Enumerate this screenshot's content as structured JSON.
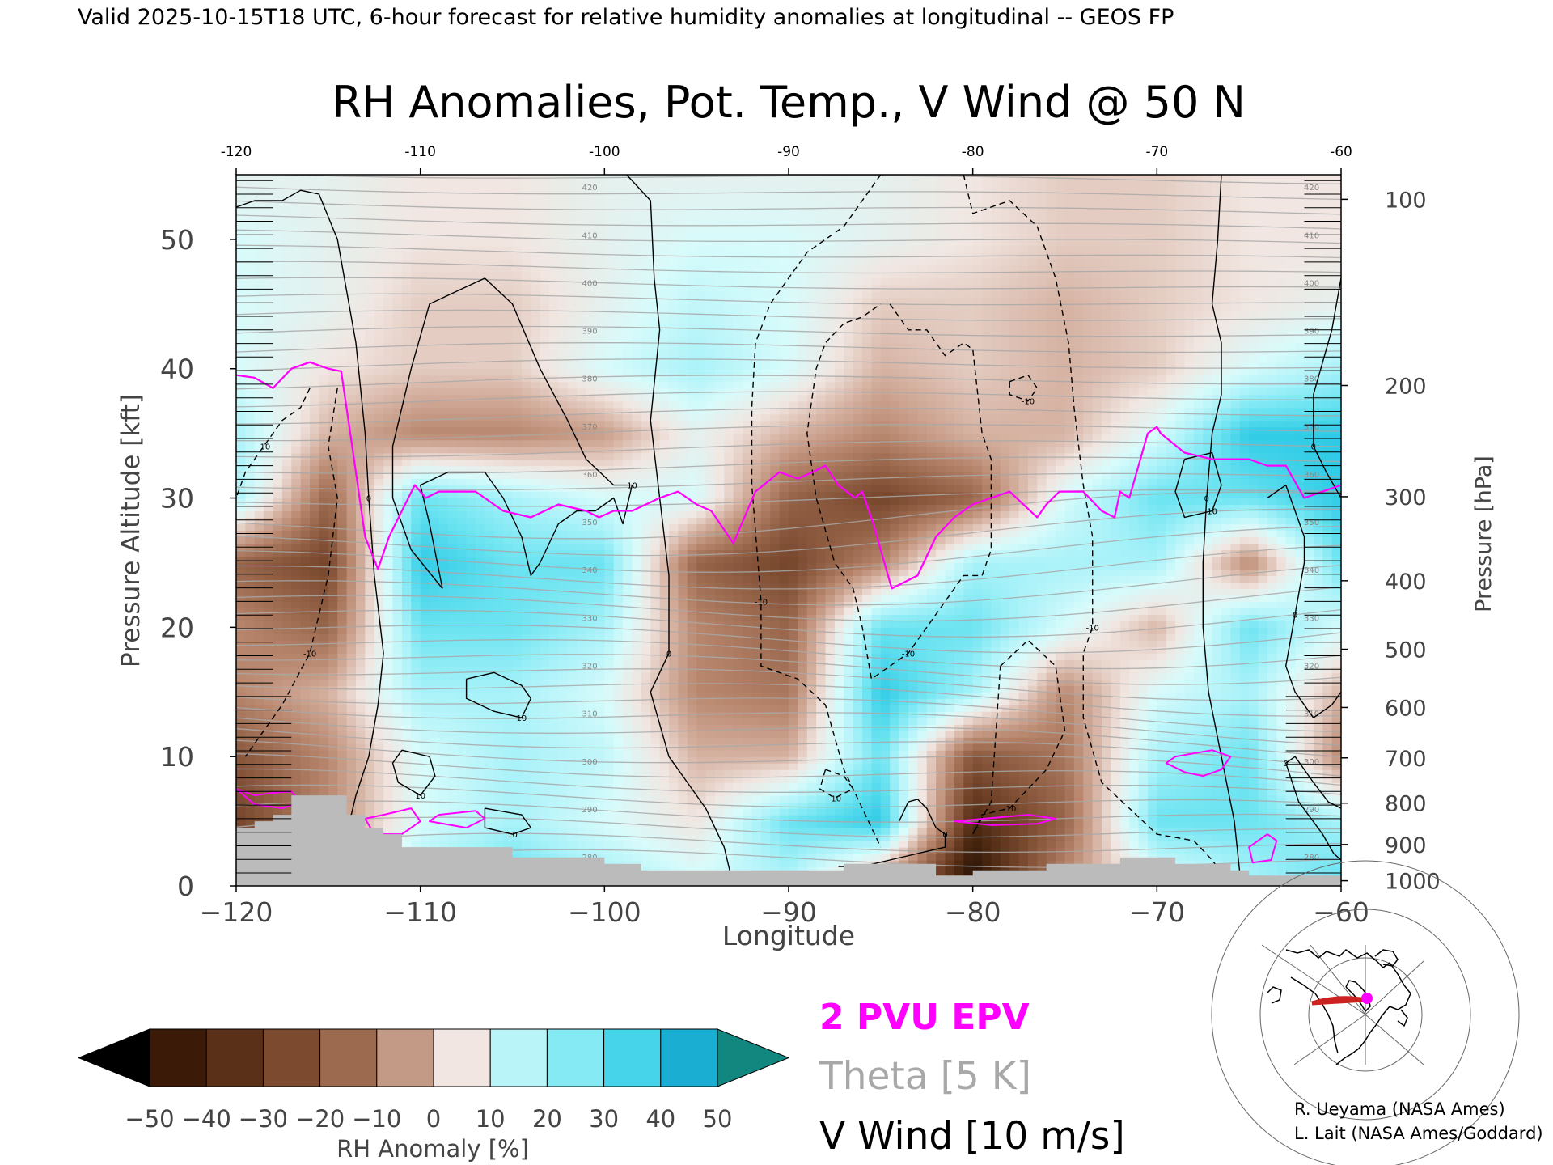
{
  "header": {
    "valid_line": "Valid 2025-10-15T18 UTC, 6-hour forecast for relative humidity anomalies at longitudinal -- GEOS FP"
  },
  "chart_data": {
    "type": "heatmap",
    "title": "RH Anomalies, Pot. Temp., V Wind @ 50 N",
    "xlabel": "Longitude",
    "ylabel_left": "Pressure Altitude [kft]",
    "ylabel_right": "Pressure [hPa]",
    "xlim": [
      -120,
      -60
    ],
    "ylim": [
      0,
      55
    ],
    "x_ticks": [
      -120,
      -110,
      -100,
      -90,
      -80,
      -70,
      -60
    ],
    "x_tick_labels_bottom": [
      "−120",
      "−110",
      "−100",
      "−90",
      "−80",
      "−70",
      "−60"
    ],
    "x_tick_labels_top": [
      "-120",
      "-110",
      "-100",
      "-90",
      "-80",
      "-70",
      "-60"
    ],
    "y_ticks": [
      0,
      10,
      20,
      30,
      40,
      50
    ],
    "y_tick_labels": [
      "0",
      "10",
      "20",
      "30",
      "40",
      "50"
    ],
    "pressure_levels": [
      {
        "hpa": 100,
        "kft": 53.1,
        "label": "100"
      },
      {
        "hpa": 200,
        "kft": 38.7,
        "label": "200"
      },
      {
        "hpa": 300,
        "kft": 30.1,
        "label": "300"
      },
      {
        "hpa": 400,
        "kft": 23.6,
        "label": "400"
      },
      {
        "hpa": 500,
        "kft": 18.3,
        "label": "500"
      },
      {
        "hpa": 600,
        "kft": 13.8,
        "label": "600"
      },
      {
        "hpa": 700,
        "kft": 9.9,
        "label": "700"
      },
      {
        "hpa": 800,
        "kft": 6.4,
        "label": "800"
      },
      {
        "hpa": 900,
        "kft": 3.2,
        "label": "900"
      },
      {
        "hpa": 1000,
        "kft": 0.4,
        "label": "1000"
      }
    ],
    "colorbar": {
      "label": "RH Anomaly [%]",
      "ticks": [
        "−50",
        "−40",
        "−30",
        "−20",
        "−10",
        "0",
        "10",
        "20",
        "30",
        "40",
        "50"
      ],
      "colors": [
        "#2a1206",
        "#4e2a12",
        "#74442a",
        "#966449",
        "#b8876e",
        "#d6b2a2",
        "#f1e6e1",
        "#d8fbfb",
        "#a9f2f9",
        "#6be3f1",
        "#2fcbe6",
        "#0f9ec4",
        "#147f86"
      ],
      "under_color": "#000000",
      "over_color": "#128780"
    },
    "rh_anomaly_samples": {
      "x": [
        -120,
        -115,
        -110,
        -105,
        -100,
        -95,
        -90,
        -85,
        -80,
        -75,
        -70,
        -65,
        -60
      ],
      "y": [
        1,
        5,
        10,
        15,
        20,
        25,
        30,
        35,
        40,
        45,
        50,
        55
      ],
      "values": [
        [
          -30,
          -10,
          20,
          30,
          20,
          10,
          20,
          -10,
          -60,
          -20,
          10,
          20,
          30
        ],
        [
          -40,
          -20,
          10,
          20,
          10,
          0,
          30,
          40,
          -50,
          -30,
          30,
          30,
          20
        ],
        [
          -35,
          -20,
          10,
          20,
          15,
          -10,
          -10,
          30,
          -35,
          -25,
          20,
          30,
          -20
        ],
        [
          -20,
          -10,
          20,
          20,
          10,
          -20,
          -25,
          40,
          20,
          -20,
          10,
          20,
          -10
        ],
        [
          -20,
          -30,
          30,
          30,
          20,
          -20,
          -30,
          30,
          30,
          10,
          -10,
          30,
          10
        ],
        [
          -30,
          -40,
          40,
          30,
          30,
          -30,
          -40,
          -20,
          20,
          20,
          20,
          -20,
          30
        ],
        [
          20,
          -30,
          30,
          20,
          10,
          10,
          -30,
          -40,
          -30,
          10,
          30,
          30,
          40
        ],
        [
          20,
          -10,
          -20,
          -20,
          -15,
          5,
          -10,
          -20,
          -10,
          -10,
          10,
          40,
          40
        ],
        [
          10,
          0,
          -5,
          -5,
          10,
          20,
          10,
          -10,
          -5,
          -10,
          -5,
          10,
          20
        ],
        [
          10,
          5,
          -5,
          -5,
          5,
          15,
          10,
          -5,
          -5,
          -10,
          -5,
          0,
          5
        ],
        [
          10,
          5,
          0,
          0,
          5,
          10,
          10,
          5,
          0,
          -5,
          -5,
          0,
          0
        ],
        [
          5,
          5,
          0,
          0,
          5,
          5,
          5,
          5,
          0,
          -5,
          -5,
          0,
          0
        ]
      ]
    },
    "epv_2pvu_line": {
      "x": [
        -120,
        -119,
        -118,
        -117,
        -116,
        -115,
        -114.3,
        -113.7,
        -113,
        -112.3,
        -111.7,
        -111,
        -110.3,
        -109.7,
        -109,
        -107,
        -105.5,
        -104,
        -102.5,
        -101,
        -100.3,
        -99.5,
        -98.5,
        -97,
        -96,
        -95,
        -94.2,
        -93,
        -91.8,
        -90.5,
        -89.5,
        -88.7,
        -88,
        -87.3,
        -86.4,
        -86,
        -85.4,
        -84.4,
        -83,
        -82,
        -81,
        -80,
        -79,
        -78,
        -76.5,
        -76,
        -75.3,
        -74,
        -73,
        -72.3,
        -72,
        -71.5,
        -70.5,
        -70,
        -69.8,
        -68.5,
        -67,
        -65,
        -64,
        -63,
        -62,
        -61,
        -60
      ],
      "y": [
        39.5,
        39.3,
        38.5,
        40,
        40.5,
        40,
        39.8,
        34,
        27,
        24.5,
        27,
        29,
        31,
        30,
        30.5,
        30.5,
        29,
        28.5,
        29.5,
        29,
        28.5,
        29,
        29,
        30,
        30.5,
        29.5,
        29,
        26.5,
        30.5,
        32,
        31.5,
        32,
        32.5,
        31,
        30,
        30.5,
        28,
        23,
        24,
        27,
        28.5,
        29.5,
        30,
        30.5,
        28.5,
        29.5,
        30.5,
        30.5,
        29,
        28.5,
        30.5,
        30,
        35,
        35.5,
        35,
        33.5,
        33,
        33,
        32.5,
        32.5,
        30,
        30.5,
        31
      ]
    },
    "epv_2pvu_blobs": [
      {
        "x": [
          -120,
          -119,
          -118,
          -117,
          -116.5,
          -117.5,
          -119,
          -120
        ],
        "y": [
          7.5,
          7,
          7.2,
          7.3,
          6.5,
          6,
          6.3,
          7.5
        ]
      },
      {
        "x": [
          -112,
          -113,
          -112.5,
          -111,
          -110,
          -110.5,
          -112
        ],
        "y": [
          5.5,
          5.2,
          4,
          4,
          5,
          6,
          5.5
        ]
      },
      {
        "x": [
          -109,
          -107,
          -106.5,
          -107.5,
          -109.5,
          -109
        ],
        "y": [
          5.5,
          5.8,
          5.2,
          4.5,
          5,
          5.5
        ]
      },
      {
        "x": [
          -81,
          -77,
          -75.5,
          -76.5,
          -79,
          -81
        ],
        "y": [
          5,
          5.5,
          5.2,
          4.8,
          4.7,
          5
        ]
      },
      {
        "x": [
          -69,
          -67,
          -66,
          -66.5,
          -67.5,
          -68.5,
          -69.5,
          -69
        ],
        "y": [
          10,
          10.5,
          10,
          9,
          8.5,
          8.8,
          9.5,
          10
        ]
      },
      {
        "x": [
          -64,
          -63.5,
          -63.8,
          -64.8,
          -65,
          -64
        ],
        "y": [
          4,
          3.5,
          2,
          1.8,
          3,
          4
        ]
      }
    ],
    "v_wind_contours": [
      {
        "label": "0",
        "style": "solid",
        "x": [
          -120,
          -119,
          -117.5,
          -116.5,
          -115.5,
          -114.5,
          -113.5,
          -113,
          -112.8,
          -112.5,
          -112,
          -112.3,
          -112.8,
          -113.5,
          -114,
          -115
        ],
        "y": [
          52.5,
          53,
          53,
          53.8,
          53.5,
          50,
          42,
          35,
          30,
          24,
          18,
          14,
          10,
          7,
          4,
          0
        ]
      },
      {
        "label": "0",
        "style": "solid",
        "x": [
          -98.8,
          -97.5,
          -97.3,
          -97,
          -97.5,
          -97,
          -96.5,
          -96.5,
          -97.5,
          -96.5,
          -95.5,
          -94.5,
          -93.5,
          -93
        ],
        "y": [
          55,
          53,
          47,
          43,
          36,
          30,
          24,
          18,
          15,
          10,
          8,
          6,
          3,
          0
        ]
      },
      {
        "label": "0",
        "style": "solid",
        "x": [
          -66.5,
          -66.7,
          -67,
          -66.5,
          -66.5,
          -67,
          -67.3,
          -67.5,
          -67.5,
          -67.2,
          -66.5,
          -65.8,
          -65.5
        ],
        "y": [
          55,
          50,
          45,
          42,
          38,
          35,
          30,
          25,
          20,
          15,
          10,
          5,
          1
        ]
      },
      {
        "label": "0",
        "style": "solid",
        "x": [
          -64,
          -63,
          -62.5,
          -62,
          -62,
          -62.5,
          -63,
          -62.5,
          -61.5,
          -60.5,
          -60
        ],
        "y": [
          30,
          31,
          29,
          27,
          25,
          21,
          17,
          15,
          13,
          14,
          15
        ]
      },
      {
        "label": "0",
        "style": "solid",
        "x": [
          -60,
          -60.5,
          -61.5,
          -61.5,
          -60.8,
          -60
        ],
        "y": [
          47,
          43,
          38,
          34,
          32,
          30
        ]
      },
      {
        "label": "0",
        "style": "solid",
        "x": [
          -84,
          -83.5,
          -83,
          -82.5,
          -82,
          -81.5,
          -81.5,
          -83,
          -84.5,
          -86,
          -87.3
        ],
        "y": [
          5,
          6.5,
          6.7,
          6,
          4.5,
          4,
          3,
          2.5,
          2,
          1.5,
          1.5
        ]
      },
      {
        "label": "0",
        "style": "solid",
        "x": [
          -60,
          -60.7,
          -61.5,
          -62.5,
          -63,
          -62.3,
          -61,
          -60.4,
          -60
        ],
        "y": [
          6,
          6.5,
          8,
          10,
          9.5,
          6.5,
          4,
          2.5,
          2
        ]
      },
      {
        "label": "10",
        "style": "solid",
        "x": [
          -108.8,
          -109.5,
          -110,
          -108.5,
          -106.5,
          -105.5,
          -104.5,
          -104,
          -103.5,
          -102.5,
          -101.5,
          -100.5,
          -99.5,
          -99,
          -98.5,
          -99.5,
          -101,
          -102,
          -103.5,
          -105,
          -106.5,
          -108,
          -109.5,
          -110.5,
          -111.5,
          -111.5,
          -110.5,
          -108.8
        ],
        "y": [
          23,
          28,
          31,
          32,
          32,
          30,
          27,
          24,
          25,
          28,
          29,
          29,
          30,
          28,
          31,
          31,
          33,
          36,
          40,
          45,
          47,
          46,
          45,
          40,
          34,
          30,
          26,
          23
        ]
      },
      {
        "label": "10",
        "style": "solid",
        "x": [
          -107.5,
          -106,
          -104.5,
          -104,
          -104.5,
          -106,
          -107.5,
          -107.5
        ],
        "y": [
          16,
          16.5,
          15.5,
          14.5,
          13,
          13.5,
          14.5,
          16
        ]
      },
      {
        "label": "10",
        "style": "solid",
        "x": [
          -111,
          -109.5,
          -109.2,
          -110,
          -111.2,
          -111.5,
          -111
        ],
        "y": [
          10.5,
          10,
          8.5,
          7,
          8,
          9.5,
          10.5
        ]
      },
      {
        "label": "10",
        "style": "solid",
        "x": [
          -106.5,
          -104.5,
          -104,
          -105,
          -106.5,
          -106.5
        ],
        "y": [
          6,
          5.5,
          4.5,
          4,
          4.5,
          6
        ]
      },
      {
        "label": "10",
        "style": "solid",
        "x": [
          -68.5,
          -67,
          -66.5,
          -67,
          -68.5,
          -69,
          -68.5
        ],
        "y": [
          33,
          33.5,
          31,
          29,
          28.5,
          30.5,
          33
        ]
      },
      {
        "label": "-10",
        "style": "dashed",
        "x": [
          -116,
          -116.5,
          -117.5,
          -118.5,
          -119.5,
          -120
        ],
        "y": [
          38.5,
          37,
          36,
          34,
          32,
          30
        ]
      },
      {
        "label": "-10",
        "style": "dashed",
        "x": [
          -114.5,
          -115,
          -114.5,
          -115,
          -116,
          -117.5,
          -118.5,
          -119.5
        ],
        "y": [
          38.5,
          34,
          30,
          24,
          18,
          14,
          12,
          10
        ]
      },
      {
        "label": "-10",
        "style": "dashed",
        "x": [
          -85,
          -87,
          -89,
          -91,
          -91.8,
          -92,
          -92,
          -91.5,
          -91.5,
          -89.5,
          -88,
          -87,
          -86,
          -85
        ],
        "y": [
          55,
          51,
          49,
          45,
          42,
          37,
          31,
          22,
          17,
          16,
          14,
          9,
          6,
          3
        ]
      },
      {
        "label": "-10",
        "style": "dashed",
        "x": [
          -80.5,
          -80,
          -78,
          -76.5,
          -75.5,
          -74.8,
          -74.5,
          -74,
          -73.5,
          -73.5,
          -73.5,
          -74,
          -74,
          -73,
          -70,
          -68,
          -67,
          -66.5,
          -65,
          -64.5
        ],
        "y": [
          55,
          52,
          53,
          51,
          47,
          42,
          37,
          31,
          27,
          24,
          20,
          18,
          13,
          8,
          4,
          3.5,
          2,
          1,
          0.5,
          0
        ]
      },
      {
        "label": "-10",
        "style": "dashed",
        "x": [
          -84.5,
          -83.5,
          -82.5,
          -81.5,
          -80.5,
          -80,
          -79.5,
          -79,
          -79,
          -79.5,
          -80.5,
          -82,
          -83.5,
          -84.5,
          -85.5,
          -86,
          -86.5,
          -87.5,
          -88.5,
          -89,
          -88.5,
          -88,
          -87,
          -86,
          -85
        ],
        "y": [
          45,
          43,
          43,
          41,
          42,
          41.5,
          35,
          33,
          26,
          24,
          24,
          21,
          18,
          17,
          16,
          20,
          23,
          25,
          30,
          35,
          40,
          42,
          43.5,
          44,
          45
        ]
      },
      {
        "label": "-10",
        "style": "dashed",
        "x": [
          -78.5,
          -77,
          -75.5,
          -75,
          -76,
          -78,
          -79.5,
          -80,
          -79,
          -78.5
        ],
        "y": [
          17,
          19,
          17,
          12,
          9,
          6,
          5.5,
          4,
          6.5,
          17
        ]
      },
      {
        "label": "-10",
        "style": "dashed",
        "x": [
          -88,
          -87,
          -86.5,
          -87.5,
          -88.3,
          -88
        ],
        "y": [
          9,
          8.5,
          7.5,
          6.8,
          7.5,
          9
        ]
      },
      {
        "label": "-10",
        "style": "dashed",
        "x": [
          -78,
          -77,
          -76.5,
          -77,
          -78,
          -78
        ],
        "y": [
          39,
          39.5,
          38.5,
          37.5,
          38,
          39
        ]
      }
    ],
    "theta_labels": [
      "420",
      "410",
      "400",
      "390",
      "380",
      "370",
      "360",
      "350",
      "340",
      "330",
      "320",
      "310",
      "300",
      "290",
      "280"
    ],
    "terrain": {
      "x": [
        -120,
        -119,
        -118,
        -117,
        -115,
        -114,
        -113,
        -112,
        -111,
        -106,
        -105,
        -101,
        -100,
        -98,
        -95,
        -87,
        -82,
        -80,
        -76,
        -73,
        -72,
        -70,
        -69,
        -67,
        -66,
        -65,
        -60
      ],
      "y": [
        4.5,
        5,
        5.5,
        7,
        7,
        5.5,
        4.5,
        4,
        3,
        3,
        2.2,
        2.2,
        1.7,
        1.2,
        1.2,
        1.7,
        0.8,
        1.2,
        1.7,
        1.7,
        2.2,
        2.2,
        1.7,
        1.7,
        1.2,
        0.8,
        0.6
      ]
    }
  },
  "legend": {
    "epv": "2 PVU EPV",
    "theta": "Theta [5 K]",
    "vwind": "V Wind [10 m/s]",
    "epv_color": "#ff00ff",
    "theta_color": "#a8a8a8"
  },
  "credits": {
    "line1": "R. Ueyama (NASA Ames)",
    "line2": "L. Lait (NASA Ames/Goddard)"
  },
  "colors": {
    "terrain": "#bbbbbb",
    "map_track": "#cc2222",
    "map_marker": "#ff00ff"
  }
}
